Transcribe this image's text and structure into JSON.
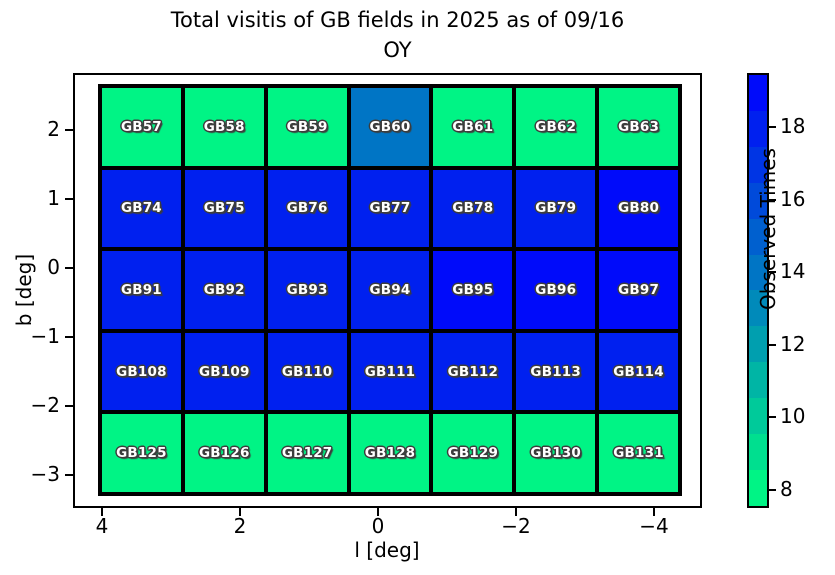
{
  "figure": {
    "title_line1": "Total visitis of GB fields in 2025 as of 09/16",
    "title_line2": "OY"
  },
  "axes": {
    "xlabel": "l [deg]",
    "ylabel": "b [deg]",
    "x_ticks": [
      {
        "label": "4",
        "value": 4
      },
      {
        "label": "2",
        "value": 2
      },
      {
        "label": "0",
        "value": 0
      },
      {
        "label": "−2",
        "value": -2
      },
      {
        "label": "−4",
        "value": -4
      }
    ],
    "y_ticks": [
      {
        "label": "2",
        "value": 2
      },
      {
        "label": "1",
        "value": 1
      },
      {
        "label": "0",
        "value": 0
      },
      {
        "label": "−1",
        "value": -1
      },
      {
        "label": "−2",
        "value": -2
      },
      {
        "label": "−3",
        "value": -3
      }
    ]
  },
  "colorbar": {
    "label": "Observed Times",
    "vmin": 7.5,
    "vmax": 19.5,
    "ticks": [
      {
        "label": "8",
        "value": 8
      },
      {
        "label": "10",
        "value": 10
      },
      {
        "label": "12",
        "value": 12
      },
      {
        "label": "14",
        "value": 14
      },
      {
        "label": "16",
        "value": 16
      },
      {
        "label": "18",
        "value": 18
      }
    ],
    "palette": {
      "8": "#00F485",
      "9": "#00DF8F",
      "10": "#00CA9A",
      "11": "#00B5A5",
      "12": "#009FAF",
      "13": "#008ABA",
      "14": "#0075C5",
      "15": "#0060CF",
      "16": "#004ADA",
      "17": "#0035E4",
      "18": "#0020EF",
      "19": "#000BFA"
    }
  },
  "chart_data": {
    "type": "heatmap",
    "title": "Total visitis of GB fields in 2025 as of 09/16 OY",
    "xlabel": "l [deg]",
    "ylabel": "b [deg]",
    "colorbar_label": "Observed Times",
    "colormap": "winter_r, discrete integer bins 8–19",
    "x_axis_inverted": true,
    "xlim": [
      4.6,
      -4.6
    ],
    "ylim": [
      2.7,
      -3.4
    ],
    "x_tick_labels": [
      "4",
      "2",
      "0",
      "−2",
      "−4"
    ],
    "y_tick_labels": [
      "2",
      "1",
      "0",
      "−1",
      "−2",
      "−3"
    ],
    "colorbar_tick_labels": [
      "8",
      "10",
      "12",
      "14",
      "16",
      "18"
    ],
    "x_centers_deg_approx": [
      3.9,
      2.6,
      1.3,
      0.0,
      -1.3,
      -2.6,
      -3.9
    ],
    "y_centers_deg_approx": [
      2.1,
      0.9,
      -0.3,
      -1.5,
      -2.7
    ],
    "rows": [
      {
        "fields": [
          "GB57",
          "GB58",
          "GB59",
          "GB60",
          "GB61",
          "GB62",
          "GB63"
        ],
        "values": [
          8,
          8,
          8,
          14,
          8,
          8,
          8
        ]
      },
      {
        "fields": [
          "GB74",
          "GB75",
          "GB76",
          "GB77",
          "GB78",
          "GB79",
          "GB80"
        ],
        "values": [
          18,
          18,
          18,
          18,
          18,
          18,
          19
        ]
      },
      {
        "fields": [
          "GB91",
          "GB92",
          "GB93",
          "GB94",
          "GB95",
          "GB96",
          "GB97"
        ],
        "values": [
          18,
          18,
          18,
          18,
          19,
          19,
          19
        ]
      },
      {
        "fields": [
          "GB108",
          "GB109",
          "GB110",
          "GB111",
          "GB112",
          "GB113",
          "GB114"
        ],
        "values": [
          18,
          18,
          18,
          18,
          18,
          18,
          18
        ]
      },
      {
        "fields": [
          "GB125",
          "GB126",
          "GB127",
          "GB128",
          "GB129",
          "GB130",
          "GB131"
        ],
        "values": [
          8,
          8,
          8,
          8,
          8,
          8,
          8
        ]
      }
    ]
  }
}
